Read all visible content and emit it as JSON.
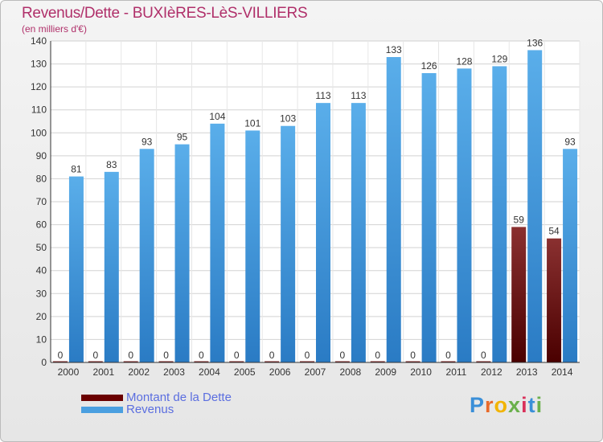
{
  "chart_data": {
    "type": "bar",
    "title": "Revenus/Dette - BUXIèRES-LèS-VILLIERS",
    "subtitle": "(en milliers d'€)",
    "categories": [
      "2000",
      "2001",
      "2002",
      "2003",
      "2004",
      "2005",
      "2006",
      "2007",
      "2008",
      "2009",
      "2010",
      "2011",
      "2012",
      "2013",
      "2014"
    ],
    "series": [
      {
        "name": "Montant de la Dette",
        "color": "#6a0000",
        "values": [
          0,
          0,
          0,
          0,
          0,
          0,
          0,
          0,
          0,
          0,
          0,
          0,
          0,
          59,
          54
        ]
      },
      {
        "name": "Revenus",
        "color": "#4a9fe0",
        "values": [
          81,
          83,
          93,
          95,
          104,
          101,
          103,
          113,
          113,
          133,
          126,
          128,
          129,
          136,
          93
        ]
      }
    ],
    "ylim": [
      0,
      140
    ],
    "yticks": [
      0,
      10,
      20,
      30,
      40,
      50,
      60,
      70,
      80,
      90,
      100,
      110,
      120,
      130,
      140
    ],
    "grid": true,
    "legend": "bottom-left"
  },
  "logo": {
    "letters": [
      {
        "char": "P",
        "color": "#3a8fd8"
      },
      {
        "char": "r",
        "color": "#e86a2a"
      },
      {
        "char": "o",
        "color": "#f2b400"
      },
      {
        "char": "x",
        "color": "#6ab04c"
      },
      {
        "char": "i",
        "color": "#d9305a"
      },
      {
        "char": "t",
        "color": "#3a8fd8"
      },
      {
        "char": "i",
        "color": "#6ab04c"
      }
    ]
  }
}
